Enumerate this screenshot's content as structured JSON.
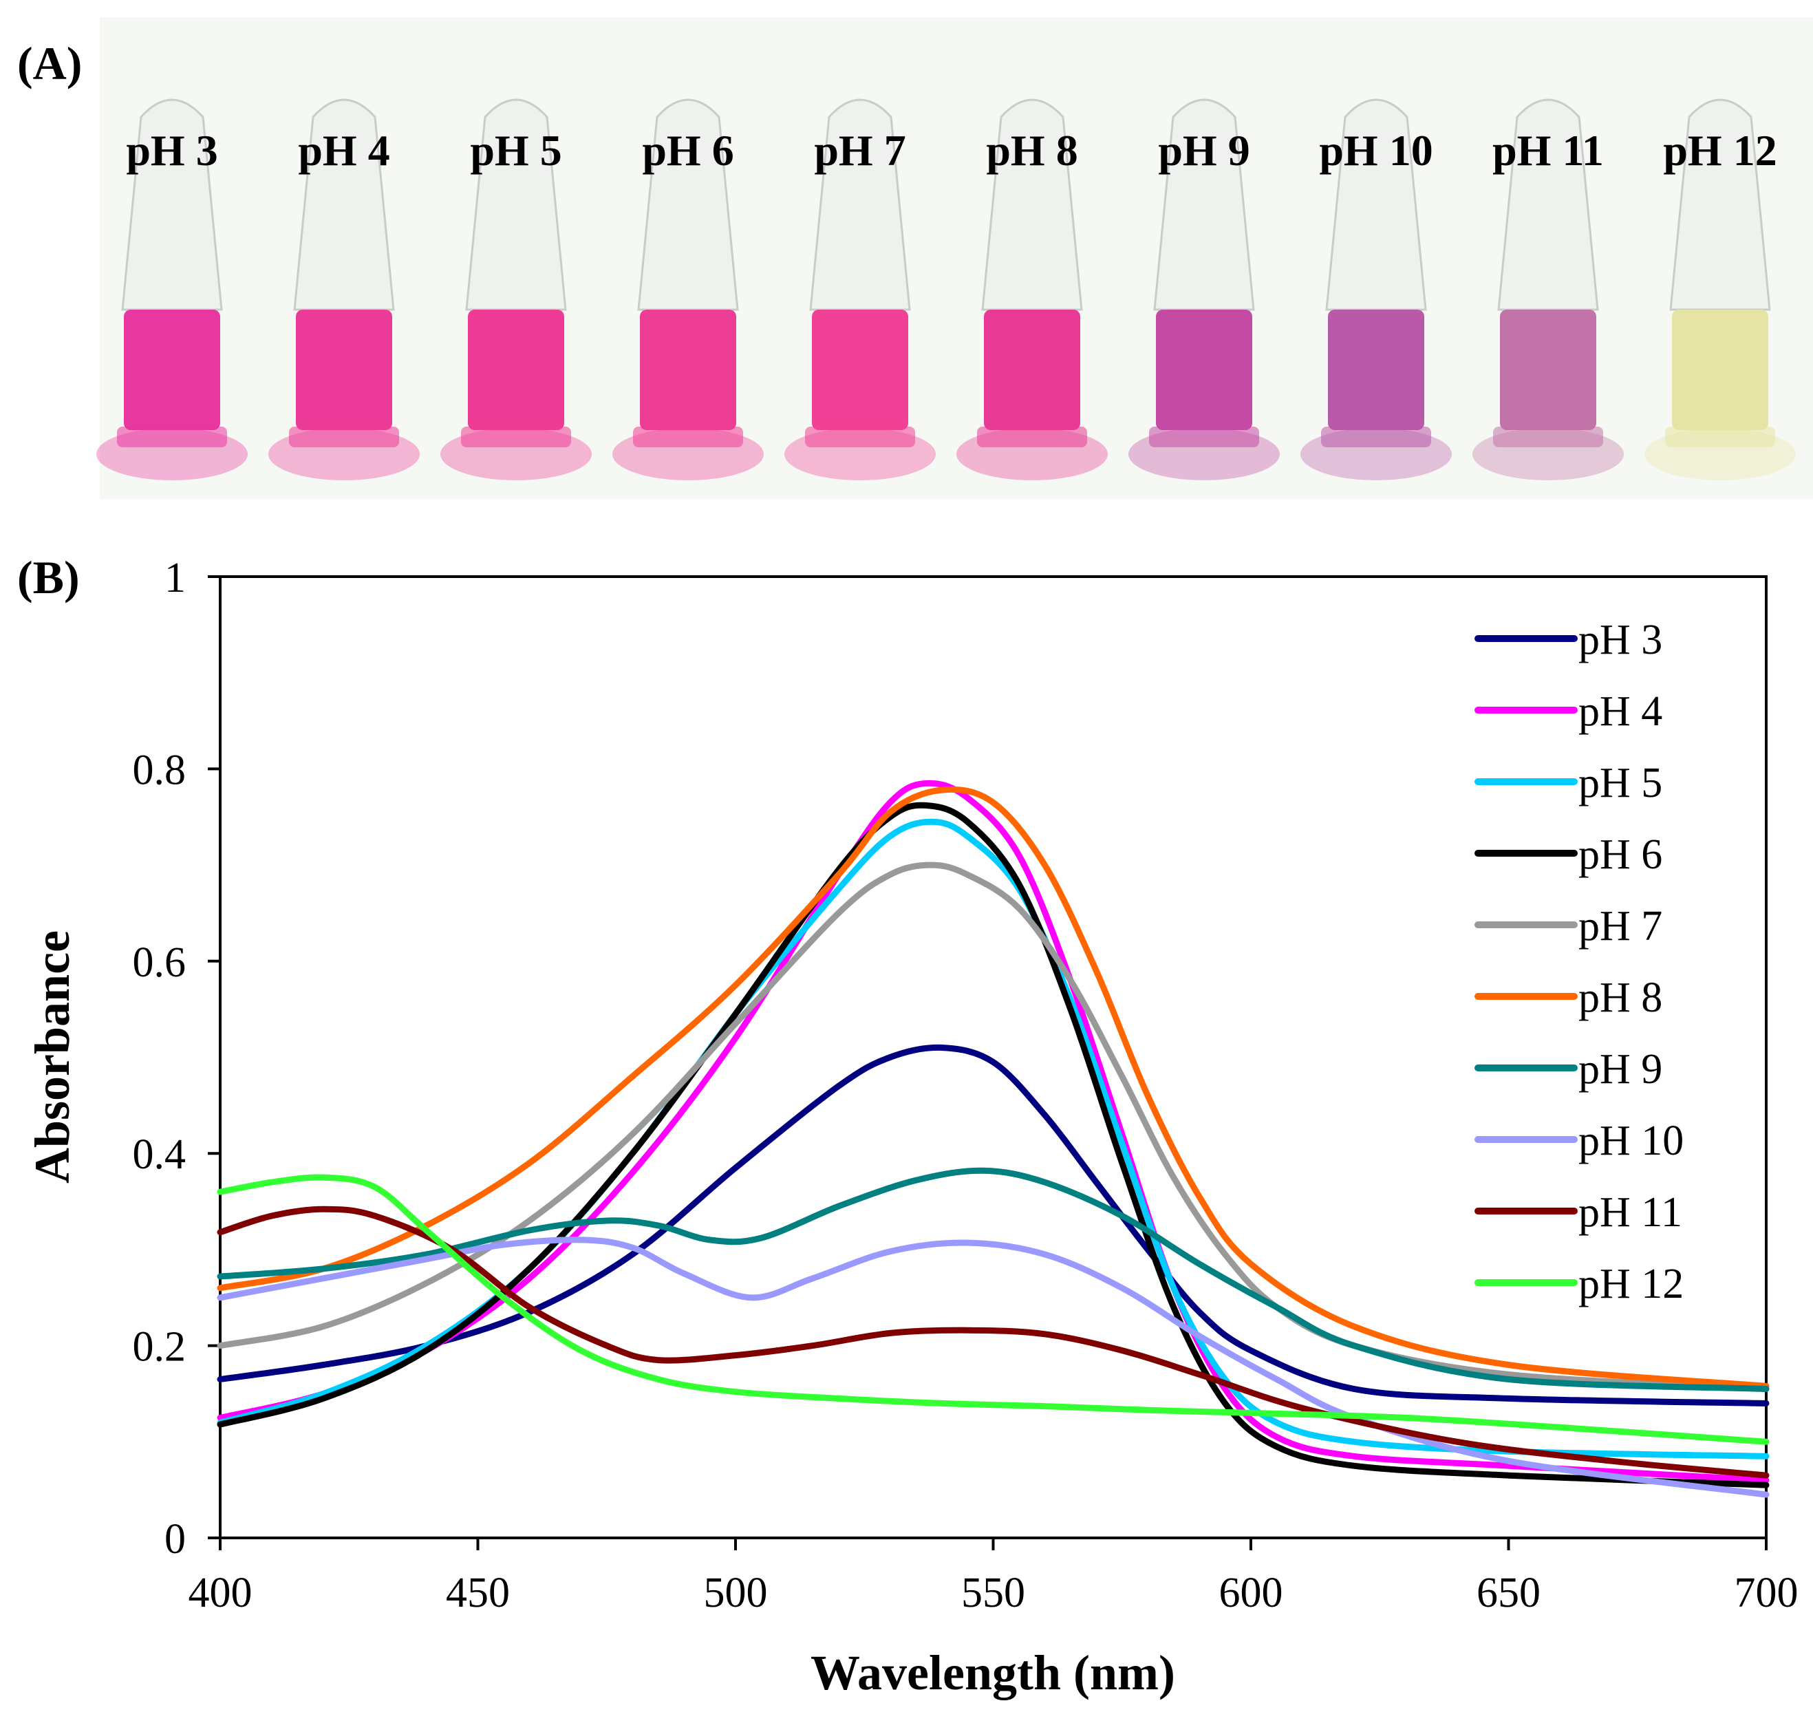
{
  "figure": {
    "panel_a_label": "(A)",
    "panel_b_label": "(B)"
  },
  "photo": {
    "tubes": [
      {
        "label": "pH 3",
        "color": "#e8379e"
      },
      {
        "label": "pH 4",
        "color": "#ec3a98"
      },
      {
        "label": "pH 5",
        "color": "#ee3c96"
      },
      {
        "label": "pH 6",
        "color": "#ee3d94"
      },
      {
        "label": "pH 7",
        "color": "#f04196"
      },
      {
        "label": "pH 8",
        "color": "#e83a94"
      },
      {
        "label": "pH 9",
        "color": "#c44aa4"
      },
      {
        "label": "pH 10",
        "color": "#b95aa8"
      },
      {
        "label": "pH 11",
        "color": "#c273a7"
      },
      {
        "label": "pH 12",
        "color": "#e6e4a4"
      }
    ]
  },
  "chart_data": {
    "type": "line",
    "title": "",
    "xlabel": "Wavelength (nm)",
    "ylabel": "Absorbance",
    "xlim": [
      400,
      700
    ],
    "ylim": [
      0,
      1
    ],
    "xticks": [
      400,
      450,
      500,
      550,
      600,
      650,
      700
    ],
    "yticks": [
      0,
      0.2,
      0.4,
      0.6,
      0.8,
      1
    ],
    "ytick_labels": [
      "0",
      "0.2",
      "0.4",
      "0.6",
      "0.8",
      "1"
    ],
    "legend_position": "top-right",
    "series": [
      {
        "name": "pH 3",
        "color": "#000080",
        "points": [
          [
            400,
            0.165
          ],
          [
            420,
            0.18
          ],
          [
            440,
            0.2
          ],
          [
            460,
            0.235
          ],
          [
            480,
            0.295
          ],
          [
            500,
            0.385
          ],
          [
            520,
            0.47
          ],
          [
            530,
            0.5
          ],
          [
            540,
            0.51
          ],
          [
            550,
            0.495
          ],
          [
            560,
            0.44
          ],
          [
            570,
            0.37
          ],
          [
            580,
            0.3
          ],
          [
            590,
            0.235
          ],
          [
            600,
            0.195
          ],
          [
            620,
            0.155
          ],
          [
            650,
            0.145
          ],
          [
            700,
            0.14
          ]
        ]
      },
      {
        "name": "pH 4",
        "color": "#ff00ff",
        "points": [
          [
            400,
            0.125
          ],
          [
            420,
            0.15
          ],
          [
            440,
            0.195
          ],
          [
            460,
            0.27
          ],
          [
            480,
            0.38
          ],
          [
            500,
            0.52
          ],
          [
            520,
            0.69
          ],
          [
            530,
            0.765
          ],
          [
            537,
            0.785
          ],
          [
            545,
            0.77
          ],
          [
            555,
            0.71
          ],
          [
            565,
            0.58
          ],
          [
            575,
            0.42
          ],
          [
            585,
            0.26
          ],
          [
            595,
            0.155
          ],
          [
            605,
            0.105
          ],
          [
            620,
            0.085
          ],
          [
            650,
            0.075
          ],
          [
            700,
            0.06
          ]
        ]
      },
      {
        "name": "pH 5",
        "color": "#00ccff",
        "points": [
          [
            400,
            0.12
          ],
          [
            420,
            0.15
          ],
          [
            440,
            0.2
          ],
          [
            460,
            0.28
          ],
          [
            480,
            0.4
          ],
          [
            500,
            0.545
          ],
          [
            520,
            0.675
          ],
          [
            530,
            0.73
          ],
          [
            538,
            0.745
          ],
          [
            545,
            0.73
          ],
          [
            555,
            0.675
          ],
          [
            565,
            0.56
          ],
          [
            575,
            0.41
          ],
          [
            585,
            0.26
          ],
          [
            595,
            0.165
          ],
          [
            605,
            0.12
          ],
          [
            620,
            0.1
          ],
          [
            650,
            0.09
          ],
          [
            700,
            0.085
          ]
        ]
      },
      {
        "name": "pH 6",
        "color": "#000000",
        "points": [
          [
            400,
            0.118
          ],
          [
            420,
            0.145
          ],
          [
            440,
            0.195
          ],
          [
            460,
            0.28
          ],
          [
            480,
            0.4
          ],
          [
            500,
            0.545
          ],
          [
            520,
            0.695
          ],
          [
            530,
            0.75
          ],
          [
            537,
            0.762
          ],
          [
            545,
            0.745
          ],
          [
            555,
            0.68
          ],
          [
            565,
            0.55
          ],
          [
            575,
            0.39
          ],
          [
            585,
            0.24
          ],
          [
            595,
            0.14
          ],
          [
            605,
            0.095
          ],
          [
            620,
            0.075
          ],
          [
            650,
            0.065
          ],
          [
            700,
            0.055
          ]
        ]
      },
      {
        "name": "pH 7",
        "color": "#999999",
        "points": [
          [
            400,
            0.2
          ],
          [
            420,
            0.22
          ],
          [
            440,
            0.265
          ],
          [
            460,
            0.33
          ],
          [
            480,
            0.42
          ],
          [
            500,
            0.535
          ],
          [
            520,
            0.65
          ],
          [
            530,
            0.69
          ],
          [
            538,
            0.7
          ],
          [
            545,
            0.69
          ],
          [
            555,
            0.655
          ],
          [
            565,
            0.58
          ],
          [
            575,
            0.48
          ],
          [
            585,
            0.375
          ],
          [
            595,
            0.295
          ],
          [
            605,
            0.24
          ],
          [
            620,
            0.2
          ],
          [
            650,
            0.17
          ],
          [
            700,
            0.155
          ]
        ]
      },
      {
        "name": "pH 8",
        "color": "#ff6600",
        "points": [
          [
            400,
            0.26
          ],
          [
            420,
            0.28
          ],
          [
            440,
            0.325
          ],
          [
            460,
            0.39
          ],
          [
            480,
            0.48
          ],
          [
            500,
            0.575
          ],
          [
            520,
            0.69
          ],
          [
            530,
            0.755
          ],
          [
            540,
            0.778
          ],
          [
            550,
            0.765
          ],
          [
            560,
            0.7
          ],
          [
            570,
            0.59
          ],
          [
            580,
            0.46
          ],
          [
            590,
            0.355
          ],
          [
            600,
            0.285
          ],
          [
            620,
            0.22
          ],
          [
            650,
            0.18
          ],
          [
            700,
            0.158
          ]
        ]
      },
      {
        "name": "pH 9",
        "color": "#008080",
        "points": [
          [
            400,
            0.272
          ],
          [
            420,
            0.28
          ],
          [
            440,
            0.295
          ],
          [
            460,
            0.32
          ],
          [
            475,
            0.33
          ],
          [
            485,
            0.325
          ],
          [
            495,
            0.31
          ],
          [
            505,
            0.312
          ],
          [
            520,
            0.345
          ],
          [
            535,
            0.372
          ],
          [
            548,
            0.382
          ],
          [
            560,
            0.37
          ],
          [
            575,
            0.335
          ],
          [
            590,
            0.285
          ],
          [
            605,
            0.24
          ],
          [
            620,
            0.2
          ],
          [
            650,
            0.165
          ],
          [
            700,
            0.155
          ]
        ]
      },
      {
        "name": "pH 10",
        "color": "#9999ff",
        "points": [
          [
            400,
            0.25
          ],
          [
            420,
            0.27
          ],
          [
            440,
            0.29
          ],
          [
            455,
            0.305
          ],
          [
            470,
            0.31
          ],
          [
            480,
            0.302
          ],
          [
            490,
            0.275
          ],
          [
            503,
            0.25
          ],
          [
            515,
            0.27
          ],
          [
            530,
            0.298
          ],
          [
            545,
            0.307
          ],
          [
            560,
            0.295
          ],
          [
            575,
            0.26
          ],
          [
            590,
            0.21
          ],
          [
            605,
            0.165
          ],
          [
            620,
            0.125
          ],
          [
            650,
            0.08
          ],
          [
            700,
            0.045
          ]
        ]
      },
      {
        "name": "pH 11",
        "color": "#800000",
        "points": [
          [
            400,
            0.318
          ],
          [
            410,
            0.335
          ],
          [
            420,
            0.342
          ],
          [
            430,
            0.335
          ],
          [
            445,
            0.3
          ],
          [
            460,
            0.24
          ],
          [
            475,
            0.2
          ],
          [
            485,
            0.185
          ],
          [
            500,
            0.19
          ],
          [
            515,
            0.2
          ],
          [
            530,
            0.213
          ],
          [
            545,
            0.216
          ],
          [
            560,
            0.212
          ],
          [
            575,
            0.195
          ],
          [
            590,
            0.17
          ],
          [
            610,
            0.135
          ],
          [
            640,
            0.1
          ],
          [
            670,
            0.08
          ],
          [
            700,
            0.065
          ]
        ]
      },
      {
        "name": "pH 12",
        "color": "#33ff33",
        "points": [
          [
            400,
            0.36
          ],
          [
            410,
            0.37
          ],
          [
            420,
            0.375
          ],
          [
            430,
            0.365
          ],
          [
            440,
            0.32
          ],
          [
            455,
            0.25
          ],
          [
            470,
            0.195
          ],
          [
            485,
            0.165
          ],
          [
            500,
            0.152
          ],
          [
            520,
            0.145
          ],
          [
            540,
            0.14
          ],
          [
            560,
            0.137
          ],
          [
            580,
            0.133
          ],
          [
            600,
            0.13
          ],
          [
            630,
            0.125
          ],
          [
            660,
            0.115
          ],
          [
            700,
            0.1
          ]
        ]
      }
    ]
  }
}
